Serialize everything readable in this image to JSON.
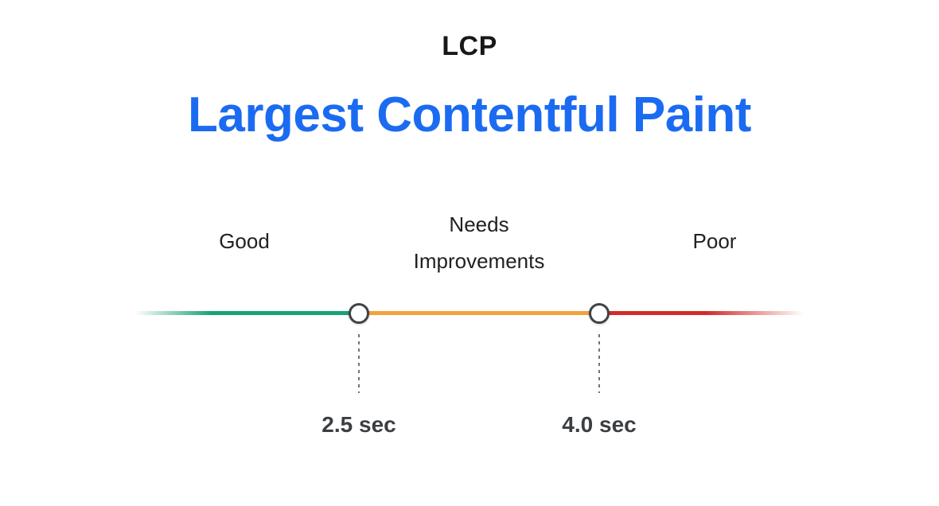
{
  "colors": {
    "title-blue": "#1b6bf2",
    "good-green": "#17a277",
    "ni-orange": "#f2a33c",
    "poor-red": "#d32b28"
  },
  "header": {
    "abbr": "LCP",
    "title": "Largest Contentful Paint"
  },
  "scale": {
    "zones": [
      {
        "label": "Good"
      },
      {
        "label": "Needs Improvements"
      },
      {
        "label": "Poor"
      }
    ],
    "thresholds": [
      {
        "label": "2.5 sec"
      },
      {
        "label": "4.0 sec"
      }
    ]
  }
}
